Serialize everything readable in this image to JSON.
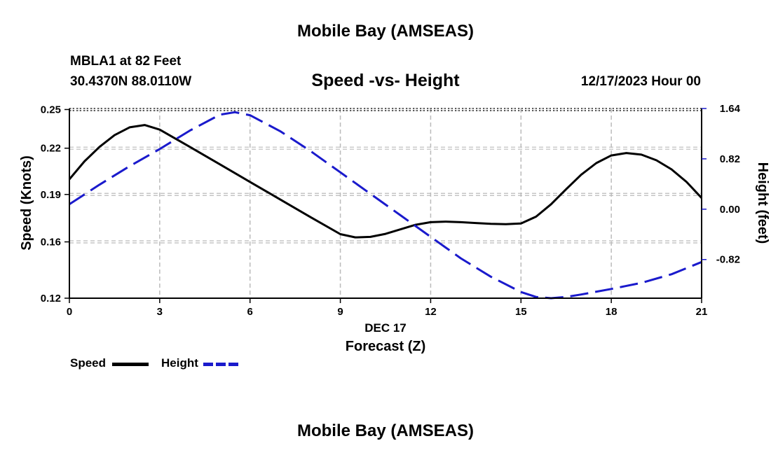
{
  "header": {
    "title": "Mobile Bay (AMSEAS)",
    "station": "MBLA1 at 82 Feet",
    "coordinates": "30.4370N  88.0110W",
    "subtitle": "Speed -vs- Height",
    "run_time": "12/17/2023 Hour 00"
  },
  "footer": {
    "title": "Mobile Bay (AMSEAS)"
  },
  "legend": {
    "speed_label": "Speed",
    "height_label": "Height"
  },
  "colors": {
    "speed": "#000000",
    "height": "#1a1acc",
    "grid": "#bbbbbb"
  },
  "chart_data": {
    "type": "line",
    "title": "Speed -vs- Height",
    "xlabel": "Forecast (Z)",
    "xlabel_date": "DEC 17",
    "ylabel": "Speed (Knots)",
    "y2label": "Height (feet)",
    "xlim": [
      0,
      21
    ],
    "ylim": [
      0.12,
      0.25
    ],
    "y2lim": [
      -1.45,
      1.64
    ],
    "x_ticks": [
      0,
      3,
      6,
      9,
      12,
      15,
      18,
      21
    ],
    "y_ticks": [
      "0.12",
      "0.16",
      "0.19",
      "0.22",
      "0.25"
    ],
    "y_tick_values": [
      0.12,
      0.1586,
      0.1911,
      0.2228,
      0.2493
    ],
    "y2_ticks": [
      "1.64",
      "0.82",
      "0.00",
      "-0.82"
    ],
    "y2_tick_values": [
      1.64,
      0.82,
      0.0,
      -0.82
    ],
    "legend_position": "bottom-left",
    "series": [
      {
        "name": "Speed",
        "axis": "left",
        "style": "solid",
        "x": [
          0,
          0.5,
          1,
          1.5,
          2,
          2.5,
          3,
          4,
          5,
          6,
          7,
          8,
          9,
          9.5,
          10,
          10.5,
          11,
          11.5,
          12,
          12.5,
          13,
          13.5,
          14,
          14.5,
          15,
          15.5,
          16,
          16.5,
          17,
          17.5,
          18,
          18.5,
          19,
          19.5,
          20,
          20.5,
          21
        ],
        "values": [
          0.2015,
          0.2138,
          0.2237,
          0.2317,
          0.2371,
          0.2387,
          0.2355,
          0.2237,
          0.2117,
          0.1997,
          0.1877,
          0.1757,
          0.1639,
          0.1617,
          0.162,
          0.1641,
          0.1672,
          0.1703,
          0.1721,
          0.1725,
          0.1721,
          0.1715,
          0.171,
          0.1707,
          0.1712,
          0.1759,
          0.1844,
          0.1947,
          0.2046,
          0.2126,
          0.2178,
          0.2195,
          0.2184,
          0.2145,
          0.2083,
          0.1997,
          0.1887
        ]
      },
      {
        "name": "Height",
        "axis": "right",
        "style": "dashed",
        "x": [
          0,
          1,
          2,
          3,
          4,
          5,
          5.5,
          6,
          7,
          8,
          9,
          10,
          11,
          12,
          13,
          14,
          15,
          15.5,
          16,
          16.5,
          17,
          18,
          19,
          20,
          21
        ],
        "values": [
          0.08,
          0.4,
          0.7,
          0.98,
          1.28,
          1.54,
          1.58,
          1.53,
          1.27,
          0.95,
          0.6,
          0.25,
          -0.1,
          -0.45,
          -0.8,
          -1.1,
          -1.35,
          -1.43,
          -1.45,
          -1.43,
          -1.39,
          -1.3,
          -1.2,
          -1.06,
          -0.86
        ]
      }
    ]
  }
}
